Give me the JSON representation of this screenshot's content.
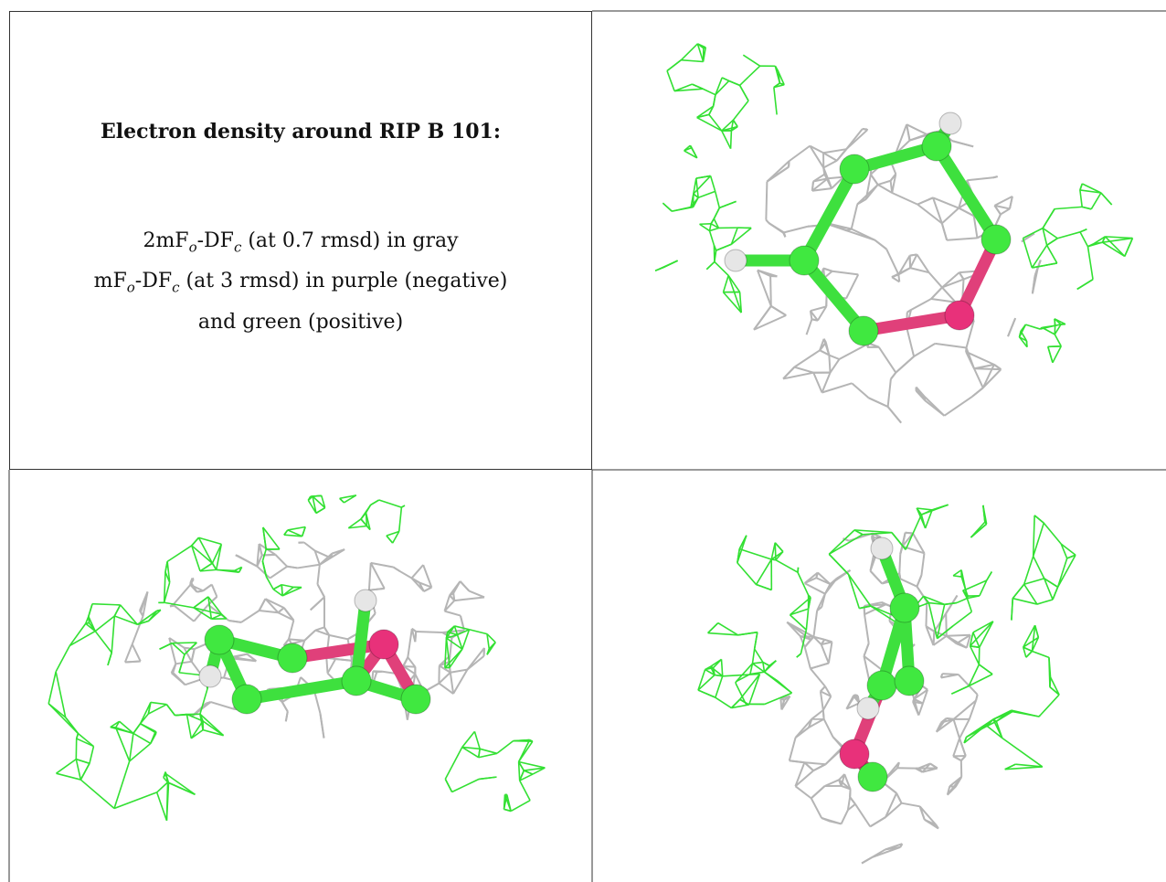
{
  "title": "Electron density around RIP B 101:",
  "legend": {
    "line1": {
      "a": "2mF",
      "b": "o",
      "c": "-DF",
      "d": "c",
      "e": " (at 0.7 rmsd) in gray"
    },
    "line2": {
      "a": "mF",
      "b": "o",
      "c": "-DF",
      "d": "c",
      "e": " (at 3 rmsd) in purple (negative)"
    },
    "line3": "and green (positive)"
  }
}
